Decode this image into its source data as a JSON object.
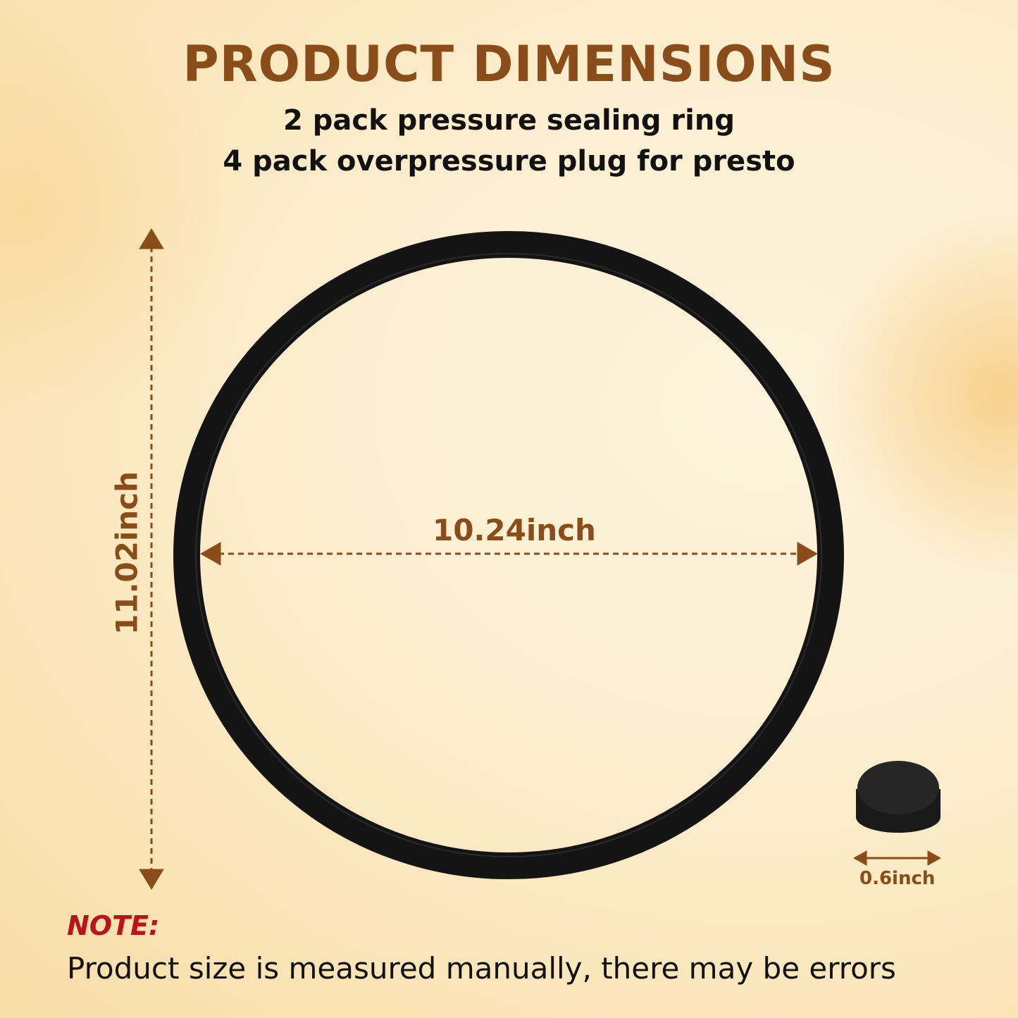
{
  "title": "PRODUCT DIMENSIONS",
  "subtitle_lines": [
    "2 pack pressure sealing ring",
    "4 pack overpressure plug for presto"
  ],
  "dimensions": {
    "height": "11.02inch",
    "width": "10.24inch",
    "plug_width": "0.6inch"
  },
  "note": {
    "label": "NOTE:",
    "text": "Product size is measured manually, there may be errors"
  },
  "colors": {
    "accent": "#8a4c18",
    "note": "#b8141a",
    "product": "#111111"
  }
}
